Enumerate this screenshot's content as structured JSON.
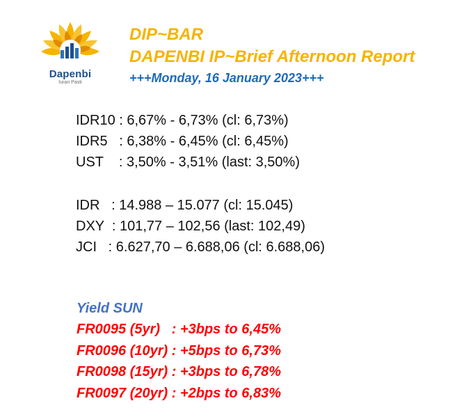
{
  "logo": {
    "name": "Dapenbi",
    "tagline": "Iuran Pasti",
    "colors": {
      "petal": "#f5b400",
      "petal_dark": "#e08a00",
      "bars": "#1d4f91"
    }
  },
  "header": {
    "line1": "DIP~BAR",
    "line2": "DAPENBI IP~Brief Afternoon Report",
    "date": "+++Monday, 16 January 2023+++"
  },
  "rates_group1": [
    "IDR10 : 6,67% - 6,73% (cl: 6,73%)",
    "IDR5   : 6,38% - 6,45% (cl: 6,45%)",
    "UST    : 3,50% - 3,51% (last: 3,50%)"
  ],
  "rates_group2": [
    "IDR   : 14.988 – 15.077 (cl: 15.045)",
    "DXY  : 101,77 – 102,56 (last: 102,49)",
    "JCI   : 6.627,70 – 6.688,06 (cl: 6.688,06)"
  ],
  "yield": {
    "title": "Yield SUN",
    "rows": [
      "FR0095 (5yr)   : +3bps to 6,45%",
      "FR0096 (10yr) : +5bps to 6,73%",
      "FR0098 (15yr) : +3bps to 6,78%",
      "FR0097 (20yr) : +2bps to 6,83%"
    ]
  },
  "colors": {
    "title": "#f5b400",
    "date": "#1f6bb5",
    "yield_title": "#4472c4",
    "yield_rows": "#ff0000",
    "body_text": "#111111"
  }
}
